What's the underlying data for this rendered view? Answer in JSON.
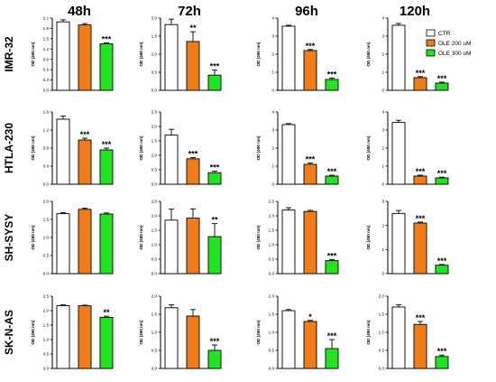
{
  "columns": [
    "48h",
    "72h",
    "96h",
    "120h"
  ],
  "rows": [
    "IMR-32",
    "HTLA-230",
    "SH-SYSY",
    "SK-N-AS"
  ],
  "legend": [
    {
      "label": "CTR",
      "color": "#ffffff"
    },
    {
      "label": "OLE 200 uM",
      "color": "#f07d1a"
    },
    {
      "label": "OLE 300 uM",
      "color": "#22e422"
    }
  ],
  "colors": {
    "ctr": "#ffffff",
    "ole200": "#f07d1a",
    "ole300": "#22e422"
  },
  "chart_data": [
    {
      "type": "bar",
      "row": "IMR-32",
      "column": "48h",
      "ylabel": "OD (490 nm)",
      "ylim": [
        0,
        2.1
      ],
      "yticks": [
        "0.0",
        "0.3",
        "0.6",
        "0.9",
        "1.2",
        "1.5",
        "1.8",
        "2.1"
      ],
      "categories": [
        "CTR",
        "OLE 200 uM",
        "OLE 300 uM"
      ],
      "values": [
        1.99,
        1.9,
        1.35
      ],
      "errors": [
        0.06,
        0.04,
        0.03
      ],
      "significance": [
        "",
        "",
        "***"
      ]
    },
    {
      "type": "bar",
      "row": "IMR-32",
      "column": "72h",
      "ylabel": "OD (490 nm)",
      "ylim": [
        0,
        2.0
      ],
      "yticks": [
        "0.0",
        "0.5",
        "1.0",
        "1.5",
        "2.0"
      ],
      "categories": [
        "CTR",
        "OLE 200 uM",
        "OLE 300 uM"
      ],
      "values": [
        1.82,
        1.35,
        0.42
      ],
      "errors": [
        0.15,
        0.27,
        0.14
      ],
      "significance": [
        "",
        "**",
        "***"
      ]
    },
    {
      "type": "bar",
      "row": "IMR-32",
      "column": "96h",
      "ylabel": "OD (490 nm)",
      "ylim": [
        0,
        4
      ],
      "yticks": [
        "0",
        "1",
        "2",
        "3",
        "4"
      ],
      "categories": [
        "CTR",
        "OLE 200 uM",
        "OLE 300 uM"
      ],
      "values": [
        3.55,
        2.2,
        0.6
      ],
      "errors": [
        0.05,
        0.06,
        0.08
      ],
      "significance": [
        "",
        "***",
        "***"
      ]
    },
    {
      "type": "bar",
      "row": "IMR-32",
      "column": "120h",
      "ylabel": "OD (490 nm)",
      "ylim": [
        0,
        4
      ],
      "yticks": [
        "0",
        "1",
        "2",
        "3",
        "4"
      ],
      "categories": [
        "CTR",
        "OLE 200 uM",
        "OLE 300 uM"
      ],
      "values": [
        3.6,
        0.7,
        0.4
      ],
      "errors": [
        0.1,
        0.06,
        0.05
      ],
      "significance": [
        "",
        "***",
        "***"
      ]
    },
    {
      "type": "bar",
      "row": "HTLA-230",
      "column": "48h",
      "ylabel": "OD (490 nm)",
      "ylim": [
        0,
        1.6
      ],
      "yticks": [
        "0.0",
        "0.4",
        "0.8",
        "1.2",
        "1.6"
      ],
      "categories": [
        "CTR",
        "OLE 200 uM",
        "OLE 300 uM"
      ],
      "values": [
        1.44,
        0.98,
        0.76
      ],
      "errors": [
        0.07,
        0.04,
        0.04
      ],
      "significance": [
        "",
        "***",
        "***"
      ]
    },
    {
      "type": "bar",
      "row": "HTLA-230",
      "column": "72h",
      "ylabel": "OD (490 nm)",
      "ylim": [
        0,
        2.5
      ],
      "yticks": [
        "0.0",
        "0.5",
        "1.0",
        "1.5",
        "2.0",
        "2.5"
      ],
      "categories": [
        "CTR",
        "OLE 200 uM",
        "OLE 300 uM"
      ],
      "values": [
        1.7,
        0.88,
        0.4
      ],
      "errors": [
        0.2,
        0.04,
        0.05
      ],
      "significance": [
        "",
        "***",
        "***"
      ]
    },
    {
      "type": "bar",
      "row": "HTLA-230",
      "column": "96h",
      "ylabel": "OD (490 nm)",
      "ylim": [
        0,
        4
      ],
      "yticks": [
        "0",
        "1",
        "2",
        "3",
        "4"
      ],
      "categories": [
        "CTR",
        "OLE 200 uM",
        "OLE 300 uM"
      ],
      "values": [
        3.3,
        1.1,
        0.45
      ],
      "errors": [
        0.06,
        0.08,
        0.05
      ],
      "significance": [
        "",
        "***",
        "***"
      ]
    },
    {
      "type": "bar",
      "row": "HTLA-230",
      "column": "120h",
      "ylabel": "OD (490 nm)",
      "ylim": [
        0,
        4
      ],
      "yticks": [
        "0",
        "1",
        "2",
        "3",
        "4"
      ],
      "categories": [
        "CTR",
        "OLE 200 uM",
        "OLE 300 uM"
      ],
      "values": [
        3.42,
        0.45,
        0.35
      ],
      "errors": [
        0.12,
        0.05,
        0.04
      ],
      "significance": [
        "",
        "***",
        "***"
      ]
    },
    {
      "type": "bar",
      "row": "SH-SYSY",
      "column": "48h",
      "ylabel": "OD (490 nm)",
      "ylim": [
        0,
        2.0
      ],
      "yticks": [
        "0.0",
        "0.5",
        "1.0",
        "1.5",
        "2.0"
      ],
      "categories": [
        "CTR",
        "OLE 200 uM",
        "OLE 300 uM"
      ],
      "values": [
        1.66,
        1.78,
        1.65
      ],
      "errors": [
        0.03,
        0.03,
        0.03
      ],
      "significance": [
        "",
        "",
        ""
      ]
    },
    {
      "type": "bar",
      "row": "SH-SYSY",
      "column": "72h",
      "ylabel": "OD (490 nm)",
      "ylim": [
        0,
        2.5
      ],
      "yticks": [
        "0.0",
        "0.5",
        "1.0",
        "1.5",
        "2.0",
        "2.5"
      ],
      "categories": [
        "CTR",
        "OLE 200 uM",
        "OLE 300 uM"
      ],
      "values": [
        1.85,
        1.92,
        1.28
      ],
      "errors": [
        0.38,
        0.32,
        0.45
      ],
      "significance": [
        "",
        "",
        "**"
      ]
    },
    {
      "type": "bar",
      "row": "SH-SYSY",
      "column": "96h",
      "ylabel": "OD (490 nm)",
      "ylim": [
        0,
        2.5
      ],
      "yticks": [
        "0.0",
        "0.5",
        "1.0",
        "1.5",
        "2.0",
        "2.5"
      ],
      "categories": [
        "CTR",
        "OLE 200 uM",
        "OLE 300 uM"
      ],
      "values": [
        2.2,
        2.15,
        0.45
      ],
      "errors": [
        0.08,
        0.04,
        0.04
      ],
      "significance": [
        "",
        "",
        "***"
      ]
    },
    {
      "type": "bar",
      "row": "SH-SYSY",
      "column": "120h",
      "ylabel": "OD (490 nm)",
      "ylim": [
        0,
        3
      ],
      "yticks": [
        "0",
        "1",
        "2",
        "3"
      ],
      "categories": [
        "CTR",
        "OLE 200 uM",
        "OLE 300 uM"
      ],
      "values": [
        2.5,
        2.1,
        0.35
      ],
      "errors": [
        0.12,
        0.04,
        0.03
      ],
      "significance": [
        "",
        "***",
        "***"
      ]
    },
    {
      "type": "bar",
      "row": "SK-N-AS",
      "column": "48h",
      "ylabel": "OD (490 nm)",
      "ylim": [
        0,
        2.5
      ],
      "yticks": [
        "0.0",
        "0.5",
        "1.0",
        "1.5",
        "2.0",
        "2.5"
      ],
      "categories": [
        "CTR",
        "OLE 200 uM",
        "OLE 300 uM"
      ],
      "values": [
        2.17,
        2.17,
        1.77
      ],
      "errors": [
        0.03,
        0.02,
        0.04
      ],
      "significance": [
        "",
        "",
        "**"
      ]
    },
    {
      "type": "bar",
      "row": "SK-N-AS",
      "column": "72h",
      "ylabel": "OD (490 nm)",
      "ylim": [
        0,
        2.0
      ],
      "yticks": [
        "0.0",
        "0.5",
        "1.0",
        "1.5",
        "2.0"
      ],
      "categories": [
        "CTR",
        "OLE 200 uM",
        "OLE 300 uM"
      ],
      "values": [
        1.68,
        1.45,
        0.5
      ],
      "errors": [
        0.08,
        0.18,
        0.15
      ],
      "significance": [
        "",
        "",
        "***"
      ]
    },
    {
      "type": "bar",
      "row": "SK-N-AS",
      "column": "96h",
      "ylabel": "OD (490 nm)",
      "ylim": [
        0,
        2.0
      ],
      "yticks": [
        "0.0",
        "0.5",
        "1.0",
        "1.5",
        "2.0"
      ],
      "categories": [
        "CTR",
        "OLE 200 uM",
        "OLE 300 uM"
      ],
      "values": [
        1.6,
        1.3,
        0.55
      ],
      "errors": [
        0.03,
        0.03,
        0.25
      ],
      "significance": [
        "",
        "*",
        "***"
      ]
    },
    {
      "type": "bar",
      "row": "SK-N-AS",
      "column": "120h",
      "ylabel": "OD (490 nm)",
      "ylim": [
        0,
        2.0
      ],
      "yticks": [
        "0.0",
        "0.5",
        "1.0",
        "1.5",
        "2.0"
      ],
      "categories": [
        "CTR",
        "OLE 200 uM",
        "OLE 300 uM"
      ],
      "values": [
        1.7,
        1.22,
        0.33
      ],
      "errors": [
        0.06,
        0.08,
        0.04
      ],
      "significance": [
        "",
        "***",
        "***"
      ]
    }
  ]
}
